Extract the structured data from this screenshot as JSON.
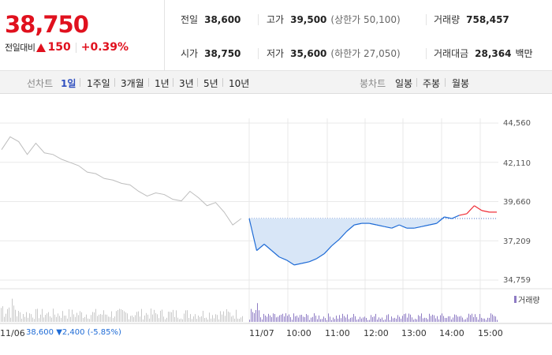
{
  "price": {
    "current": "38,750",
    "diff_label": "전일대비",
    "diff_value": "150",
    "diff_rate": "+0.39%"
  },
  "stats": {
    "prev_close": {
      "label": "전일",
      "value": "38,600"
    },
    "high": {
      "label": "고가",
      "value": "39,500",
      "sub": "(상한가 50,100)"
    },
    "volume": {
      "label": "거래량",
      "value": "758,457"
    },
    "open": {
      "label": "시가",
      "value": "38,750"
    },
    "low": {
      "label": "저가",
      "value": "35,600",
      "sub": "(하한가 27,050)"
    },
    "amount": {
      "label": "거래대금",
      "value": "28,364",
      "unit": "백만"
    }
  },
  "line_chart_group": {
    "label": "선차트",
    "options": [
      "1일",
      "1주일",
      "3개월",
      "1년",
      "3년",
      "5년",
      "10년"
    ],
    "active": "1일"
  },
  "candle_chart_group": {
    "label": "봉차트",
    "options": [
      "일봉",
      "주봉",
      "월봉"
    ]
  },
  "chart_data": {
    "type": "line",
    "y_ticks": [
      "44,560",
      "42,110",
      "39,660",
      "37,209",
      "34,759"
    ],
    "y_tick_values": [
      44560,
      42110,
      39660,
      37209,
      34759
    ],
    "ylim": [
      34759,
      44560
    ],
    "x_ticks": [
      "11/06",
      "11/07",
      "10:00",
      "11:00",
      "12:00",
      "13:00",
      "14:00",
      "15:00"
    ],
    "reference_price": 38600,
    "series": [
      {
        "values_prev_day": [
          42900,
          43700,
          43400,
          42600,
          43300,
          42700,
          42600,
          42300,
          42100,
          41900,
          41500,
          41400,
          41100,
          41000,
          40800,
          40700,
          40300,
          40000,
          40200,
          40100,
          39800,
          39700,
          40300,
          39900,
          39400,
          39600,
          39000,
          38200,
          38600
        ],
        "values_today": [
          38600,
          36600,
          37000,
          36600,
          36200,
          36000,
          35700,
          35800,
          35900,
          36100,
          36400,
          36900,
          37300,
          37800,
          38200,
          38300,
          38300,
          38200,
          38100,
          38000,
          38200,
          38000,
          38000,
          38100,
          38200,
          38300,
          38700,
          38600,
          38800,
          38900,
          39400,
          39100,
          39000,
          39000
        ]
      }
    ],
    "volume_legend": "거래량",
    "prev_info": {
      "price": "38,600",
      "change": "▼2,400",
      "rate": "(-5.85%)"
    },
    "colors": {
      "prev_day_line": "#bdbdbd",
      "down_line": "#1e6bd6",
      "down_fill": "#d8e6f7",
      "up_line": "#ef2b34",
      "volume": "#8e7bc4",
      "grid": "#e9e9e9"
    }
  }
}
